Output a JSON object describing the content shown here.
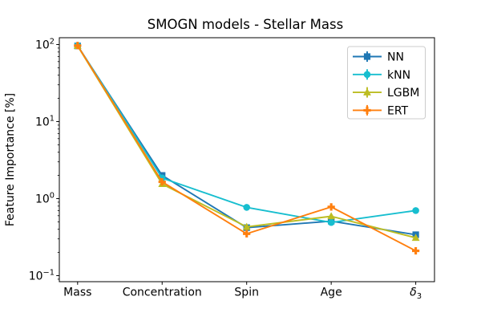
{
  "figure": {
    "background": "#ffffff",
    "text_color": "#000000",
    "axis_color": "#000000"
  },
  "chart_data": {
    "type": "line",
    "title": "SMOGN models - Stellar Mass",
    "xlabel": "",
    "ylabel": "Feature Importance [%]",
    "x_categories": [
      "Mass",
      "Concentration",
      "Spin",
      "Age",
      "δ_3"
    ],
    "y_scale": "log",
    "y_ticks": [
      0.1,
      1,
      10,
      100
    ],
    "ylim": [
      0.084,
      122
    ],
    "grid": false,
    "legend_position": "upper right",
    "marker_style": "errorbar",
    "series": [
      {
        "name": "NN",
        "color": "#1f77b4",
        "marker": "square",
        "values": [
          96,
          2.0,
          0.42,
          0.51,
          0.34
        ]
      },
      {
        "name": "kNN",
        "color": "#17becf",
        "marker": "circle",
        "values": [
          97,
          1.85,
          0.77,
          0.49,
          0.7
        ]
      },
      {
        "name": "LGBM",
        "color": "#bcbd22",
        "marker": "triangle",
        "values": [
          96,
          1.55,
          0.43,
          0.59,
          0.31
        ]
      },
      {
        "name": "ERT",
        "color": "#ff7f0e",
        "marker": "plus",
        "values": [
          97,
          1.65,
          0.35,
          0.78,
          0.21
        ]
      }
    ]
  }
}
